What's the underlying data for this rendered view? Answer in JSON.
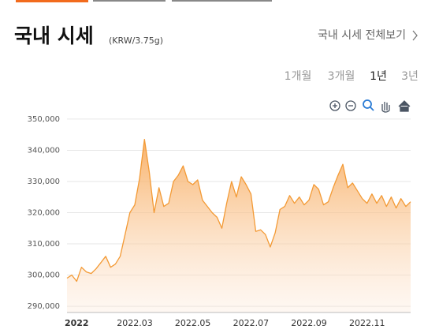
{
  "header": {
    "title": "국내 시세",
    "unit": "(KRW/3.75g)",
    "link": "국내 시세 전체보기",
    "tabs": [
      "1개월",
      "3개월",
      "1년",
      "3년"
    ],
    "selected_tab": 2
  },
  "chart_data": {
    "type": "area",
    "color": "#f39a35",
    "categories": [
      null,
      null,
      "2022",
      null,
      null,
      null,
      null,
      null,
      null,
      null,
      null,
      null,
      null,
      null,
      "2022.03",
      null,
      null,
      null,
      null,
      null,
      null,
      null,
      null,
      null,
      null,
      null,
      "2022.05",
      null,
      null,
      null,
      null,
      null,
      null,
      null,
      null,
      null,
      null,
      null,
      "2022.07",
      null,
      null,
      null,
      null,
      null,
      null,
      null,
      null,
      null,
      null,
      null,
      "2022.09",
      null,
      null,
      null,
      null,
      null,
      null,
      null,
      null,
      null,
      null,
      null,
      "2022.11",
      null,
      null,
      null,
      null,
      null,
      null,
      null,
      null,
      null
    ],
    "values": [
      299000,
      300000,
      298000,
      302500,
      301000,
      300500,
      302000,
      304000,
      306000,
      302500,
      303500,
      306000,
      313000,
      320000,
      322500,
      331000,
      343500,
      333000,
      320000,
      328000,
      322000,
      323000,
      330000,
      332000,
      335000,
      330000,
      329000,
      330500,
      324000,
      322000,
      320000,
      318500,
      315000,
      323000,
      330000,
      325000,
      331500,
      329000,
      326000,
      314000,
      314500,
      313000,
      309000,
      313500,
      321000,
      322000,
      325500,
      323000,
      325000,
      322500,
      324000,
      329000,
      327500,
      322500,
      323500,
      328000,
      332000,
      335500,
      328000,
      329500,
      327000,
      324500,
      323000,
      326000,
      323000,
      325500,
      322000,
      325000,
      321500,
      324500,
      322000,
      323500
    ],
    "ylim": [
      288000,
      352000
    ],
    "yticks": [
      {
        "value": 290000,
        "label": "290,000"
      },
      {
        "value": 300000,
        "label": "300,000"
      },
      {
        "value": 310000,
        "label": "310,000"
      },
      {
        "value": 320000,
        "label": "320,000"
      },
      {
        "value": 330000,
        "label": "330,000"
      },
      {
        "value": 340000,
        "label": "340,000"
      },
      {
        "value": 350000,
        "label": "350,000"
      }
    ],
    "grid": true
  }
}
